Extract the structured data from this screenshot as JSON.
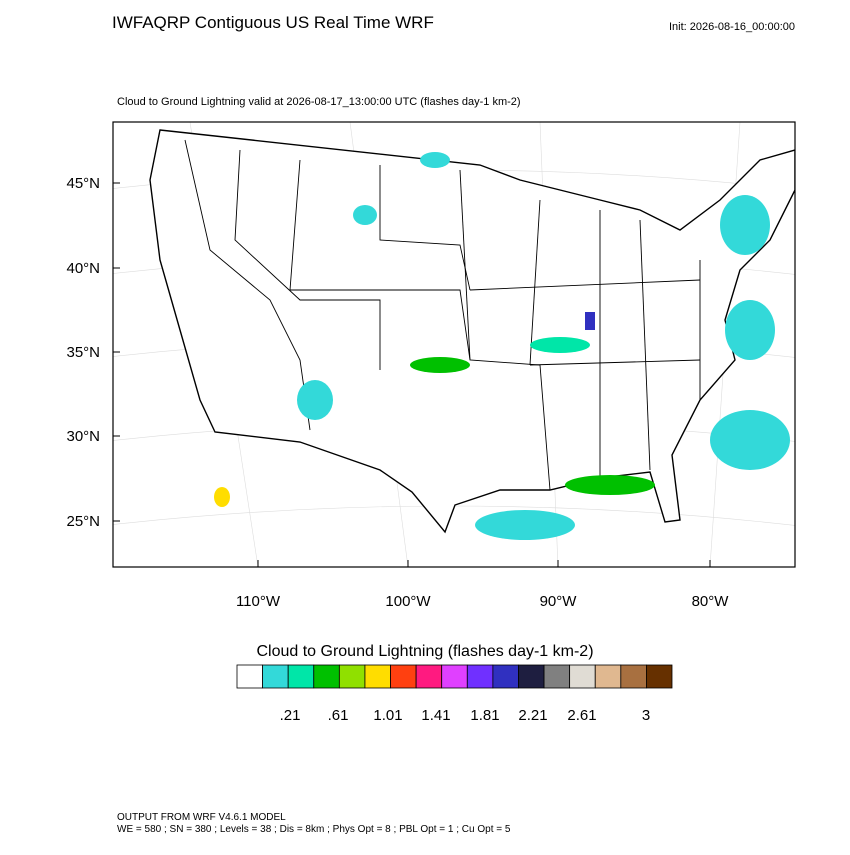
{
  "header": {
    "title": "IWFAQRP Contiguous US Real Time WRF",
    "init": "Init: 2026-08-16_00:00:00"
  },
  "map": {
    "subtitle": "Cloud to Ground Lightning valid at 2026-08-17_13:00:00 UTC   (flashes day-1 km-2)",
    "lat_labels": [
      "45°N",
      "40°N",
      "35°N",
      "30°N",
      "25°N"
    ],
    "lon_labels": [
      "110°W",
      "100°W",
      "90°W",
      "80°W"
    ]
  },
  "colorbar": {
    "title": "Cloud to Ground Lightning  (flashes day-1 km-2)",
    "colors": [
      "#ffffff",
      "#33d9d9",
      "#00e6a8",
      "#00c000",
      "#90e000",
      "#ffdd00",
      "#ff4010",
      "#ff1a80",
      "#e040ff",
      "#7030ff",
      "#3030c0",
      "#1e1e40",
      "#808080",
      "#e0dcd4",
      "#e0b890",
      "#a87040",
      "#663000"
    ],
    "labels": [
      ".21",
      ".61",
      "1.01",
      "1.41",
      "1.81",
      "2.21",
      "2.61",
      "3"
    ]
  },
  "footer": {
    "lines": [
      "OUTPUT FROM WRF V4.6.1 MODEL",
      "WE = 580 ; SN = 380 ; Levels = 38 ; Dis = 8km ; Phys Opt = 8 ; PBL Opt = 1 ; Cu Opt = 5"
    ]
  }
}
